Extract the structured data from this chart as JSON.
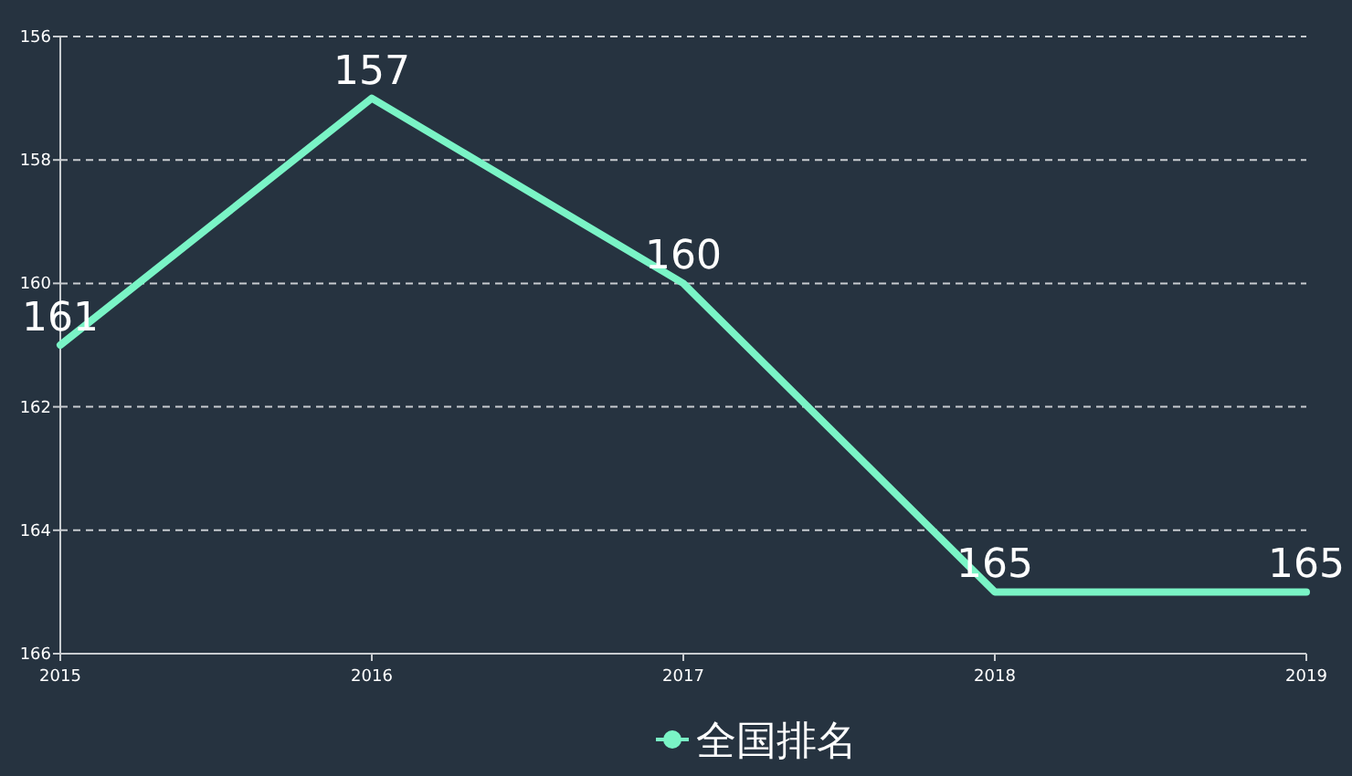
{
  "chart_data": {
    "type": "line",
    "categories": [
      "2015",
      "2016",
      "2017",
      "2018",
      "2019"
    ],
    "series": [
      {
        "name": "全国排名",
        "color": "#7af4c6",
        "values": [
          161,
          157,
          160,
          165,
          165
        ]
      }
    ],
    "ylim": [
      166,
      156
    ],
    "yticks": [
      156,
      158,
      160,
      162,
      164,
      166
    ],
    "grid": "y",
    "data_labels": true,
    "legend": "bottom",
    "marker": "none",
    "line_style": "solid"
  }
}
